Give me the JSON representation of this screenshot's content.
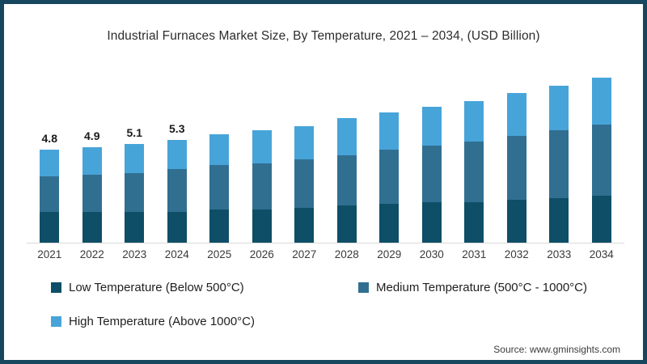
{
  "title": "Industrial Furnaces Market Size, By Temperature, 2021 – 2034, (USD Billion)",
  "source": "Source: www.gminsights.com",
  "frame": {
    "border_color": "#17465f",
    "background": "#ffffff"
  },
  "legend": [
    {
      "label": "Low Temperature (Below 500°C)",
      "color": "#0e4e66"
    },
    {
      "label": "Medium Temperature (500°C - 1000°C)",
      "color": "#316f91"
    },
    {
      "label": "High Temperature (Above  1000°C)",
      "color": "#47a4d9"
    }
  ],
  "chart_data": {
    "type": "bar",
    "stacked": true,
    "title": "Industrial Furnaces Market Size, By Temperature, 2021 – 2034, (USD Billion)",
    "xlabel": "",
    "ylabel": "",
    "ylim": [
      0,
      9
    ],
    "grid": false,
    "legend_position": "bottom",
    "categories": [
      "2021",
      "2022",
      "2023",
      "2024",
      "2025",
      "2026",
      "2027",
      "2028",
      "2029",
      "2030",
      "2031",
      "2032",
      "2033",
      "2034"
    ],
    "series": [
      {
        "name": "Low Temperature (Below 500°C)",
        "color": "#0e4e66",
        "values": [
          1.6,
          1.6,
          1.6,
          1.6,
          1.7,
          1.7,
          1.8,
          1.9,
          2.0,
          2.1,
          2.1,
          2.2,
          2.3,
          2.4
        ]
      },
      {
        "name": "Medium Temperature (500°C - 1000°C)",
        "color": "#316f91",
        "values": [
          1.8,
          1.9,
          2.0,
          2.2,
          2.3,
          2.4,
          2.5,
          2.6,
          2.8,
          2.9,
          3.1,
          3.3,
          3.5,
          3.7
        ]
      },
      {
        "name": "High Temperature (Above  1000°C)",
        "color": "#47a4d9",
        "values": [
          1.4,
          1.4,
          1.5,
          1.5,
          1.6,
          1.7,
          1.7,
          1.9,
          1.9,
          2.0,
          2.1,
          2.2,
          2.3,
          2.4
        ]
      }
    ],
    "totals": [
      4.8,
      4.9,
      5.1,
      5.3,
      5.6,
      5.8,
      6.0,
      6.4,
      6.7,
      7.0,
      7.3,
      7.7,
      8.1,
      8.5
    ],
    "shown_value_labels": [
      "4.8",
      "4.9",
      "5.1",
      "5.3"
    ]
  }
}
